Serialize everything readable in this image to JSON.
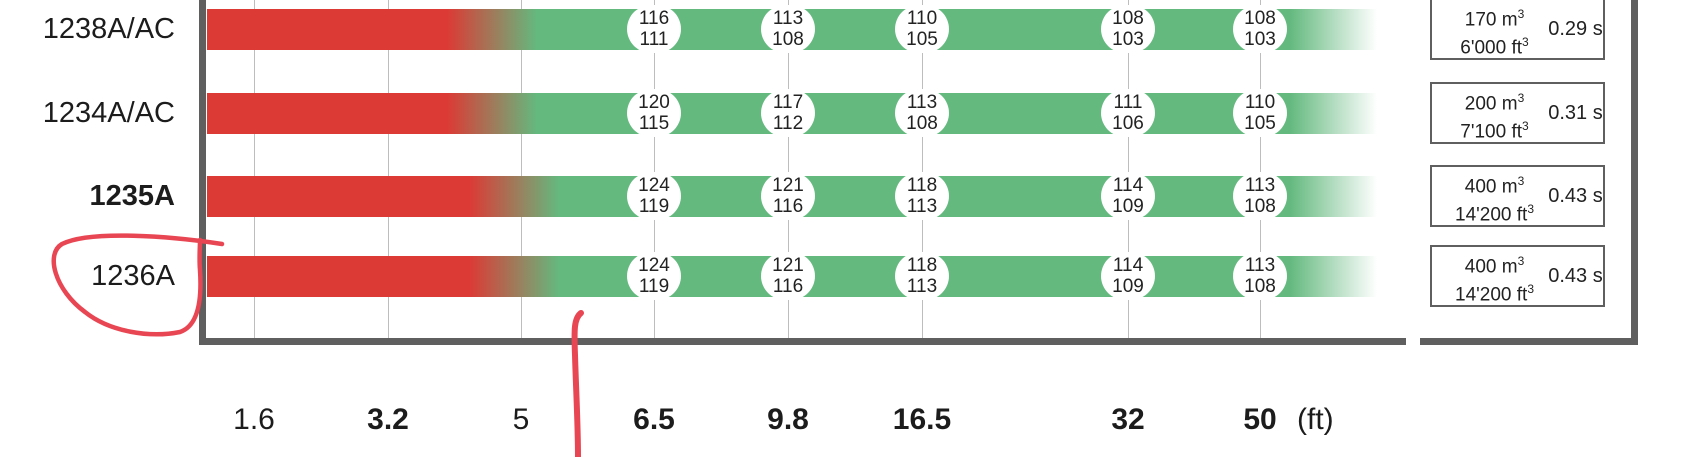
{
  "colors": {
    "too_close": "#dc3a35",
    "safe": "#64b97f",
    "frame": "#5f5f5f",
    "annotation": "#e84652"
  },
  "chart_data": {
    "type": "bar",
    "x_unit_label": "(ft)",
    "x_ticks": [
      "1.6",
      "3.2",
      "5",
      "6.5",
      "9.8",
      "16.5",
      "32",
      "50"
    ],
    "x_ticks_bold": [
      false,
      true,
      false,
      true,
      true,
      true,
      true,
      true
    ],
    "series": [
      {
        "name": "1238A/AC",
        "values_top": [
          "116",
          "113",
          "110",
          "108",
          "108"
        ],
        "values_bottom": [
          "111",
          "108",
          "105",
          "103",
          "103"
        ],
        "volume_m3": "170 m",
        "volume_ft3": "6'000 ft",
        "time": "0.29 s",
        "red_until_ft": 4.0
      },
      {
        "name": "1234A/AC",
        "values_top": [
          "120",
          "117",
          "113",
          "111",
          "110"
        ],
        "values_bottom": [
          "115",
          "112",
          "108",
          "106",
          "105"
        ],
        "volume_m3": "200 m",
        "volume_ft3": "7'100 ft",
        "time": "0.31 s",
        "red_until_ft": 4.0
      },
      {
        "name": "1235A",
        "values_top": [
          "124",
          "121",
          "118",
          "114",
          "113"
        ],
        "values_bottom": [
          "119",
          "116",
          "113",
          "109",
          "108"
        ],
        "volume_m3": "400 m",
        "volume_ft3": "14'200 ft",
        "time": "0.43 s",
        "red_until_ft": 4.3
      },
      {
        "name": "1236A",
        "values_top": [
          "124",
          "121",
          "118",
          "114",
          "113"
        ],
        "values_bottom": [
          "119",
          "116",
          "113",
          "109",
          "108"
        ],
        "volume_m3": "400 m",
        "volume_ft3": "14'200 ft",
        "time": "0.43 s",
        "red_until_ft": 4.3
      }
    ],
    "label_bold": [
      false,
      false,
      true,
      false
    ],
    "grid": true
  }
}
